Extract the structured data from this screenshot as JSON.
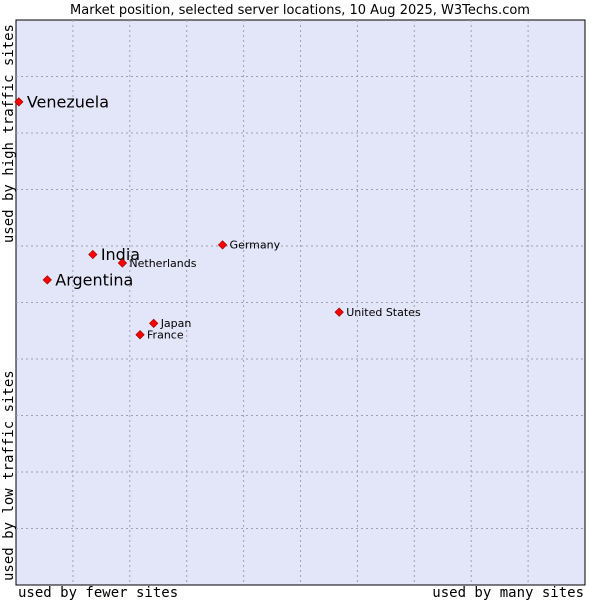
{
  "chart_data": {
    "type": "scatter",
    "title": "Market position, selected server locations, 10 Aug 2025, W3Techs.com",
    "xlabel_left": "used by fewer sites",
    "xlabel_right": "used by many sites",
    "ylabel_bottom": "used by low traffic sites",
    "ylabel_top": "used by high traffic sites",
    "xlim": [
      0,
      100
    ],
    "ylim": [
      0,
      100
    ],
    "grid": true,
    "colors": {
      "background": "#e3e5f8",
      "grid": "#a0a0b4",
      "point": "#ff0000",
      "point_edge": "#8b0000",
      "text": "#000000"
    },
    "points": [
      {
        "label": "Venezuela",
        "x": 0.5,
        "y": 85.5,
        "size": "large"
      },
      {
        "label": "India",
        "x": 13.5,
        "y": 58.5,
        "size": "large"
      },
      {
        "label": "Argentina",
        "x": 5.5,
        "y": 54.0,
        "size": "large"
      },
      {
        "label": "Netherlands",
        "x": 18.7,
        "y": 57.0,
        "size": "small"
      },
      {
        "label": "Germany",
        "x": 36.3,
        "y": 60.2,
        "size": "small"
      },
      {
        "label": "United States",
        "x": 56.8,
        "y": 48.3,
        "size": "small"
      },
      {
        "label": "Japan",
        "x": 24.2,
        "y": 46.3,
        "size": "small"
      },
      {
        "label": "France",
        "x": 21.8,
        "y": 44.3,
        "size": "small"
      }
    ]
  }
}
